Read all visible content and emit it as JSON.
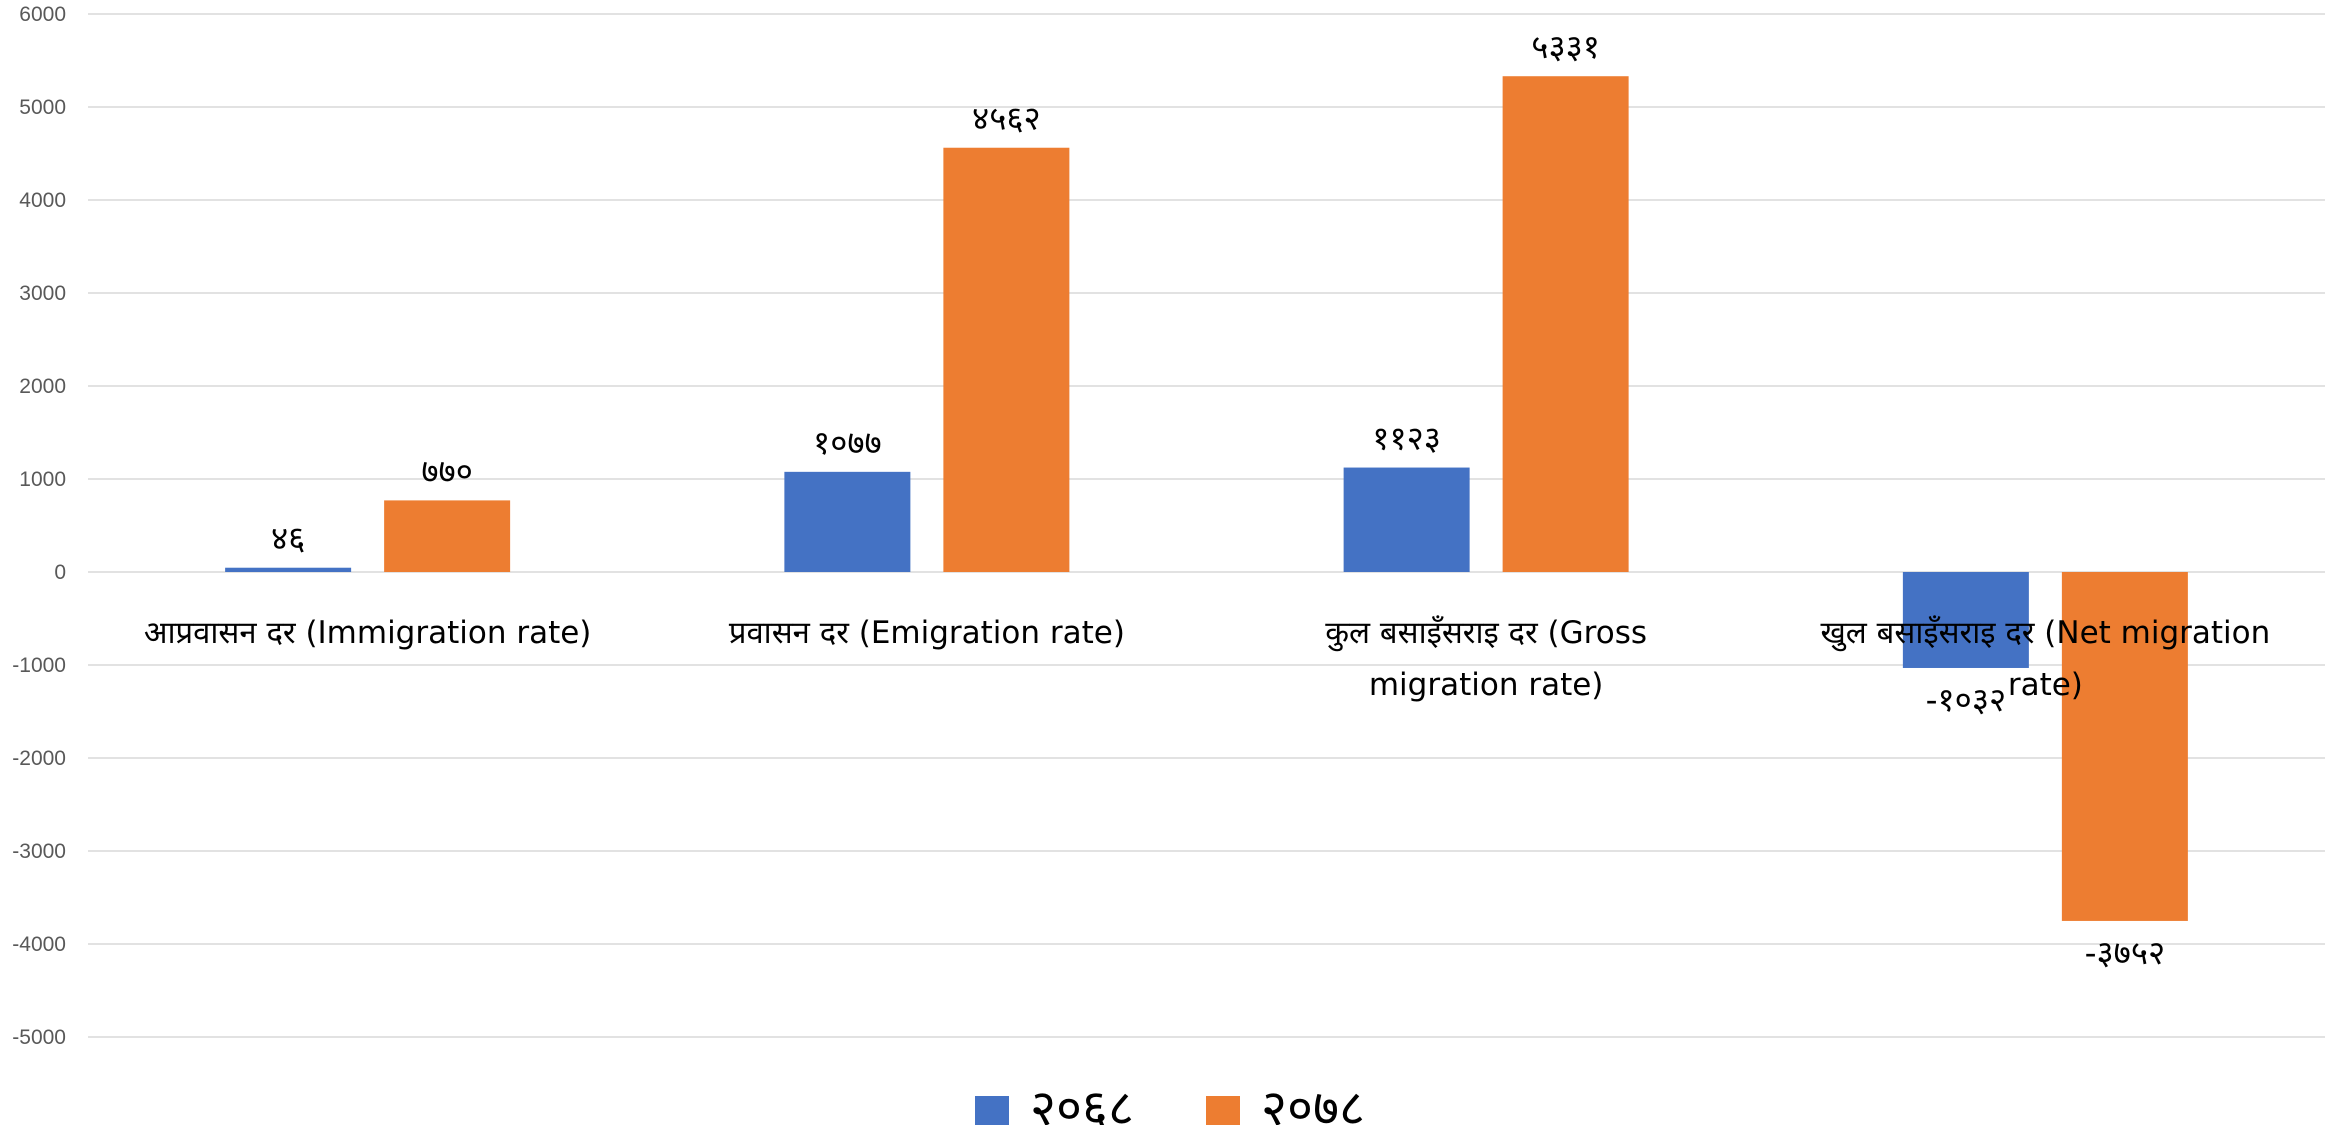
{
  "chart_data": {
    "type": "bar",
    "categories": [
      [
        "आप्रवासन दर (Immigration rate)"
      ],
      [
        "प्रवासन दर (Emigration rate)"
      ],
      [
        "कुल बसाइँसराइ दर (Gross",
        "migration rate)"
      ],
      [
        "खुल बसाइँसराइ दर (Net migration",
        "rate)"
      ]
    ],
    "series": [
      {
        "name": "२०६८",
        "color": "#4472c4",
        "values": [
          46,
          1077,
          1123,
          -1032
        ],
        "labels": [
          "४६",
          "१०७७",
          "११२३",
          "-१०३२"
        ]
      },
      {
        "name": "२०७८",
        "color": "#ed7d31",
        "values": [
          770,
          4562,
          5331,
          -3752
        ],
        "labels": [
          "७७०",
          "४५६२",
          "५३३१",
          "-३७५२"
        ]
      }
    ],
    "ylim": [
      -5000,
      6000
    ],
    "yticks": [
      -5000,
      -4000,
      -3000,
      -2000,
      -1000,
      0,
      1000,
      2000,
      3000,
      4000,
      5000,
      6000
    ],
    "ytick_labels": [
      "-5000",
      "-4000",
      "-3000",
      "-2000",
      "-1000",
      "0",
      "1000",
      "2000",
      "3000",
      "4000",
      "5000",
      "6000"
    ],
    "grid": true,
    "legend": "bottom"
  }
}
